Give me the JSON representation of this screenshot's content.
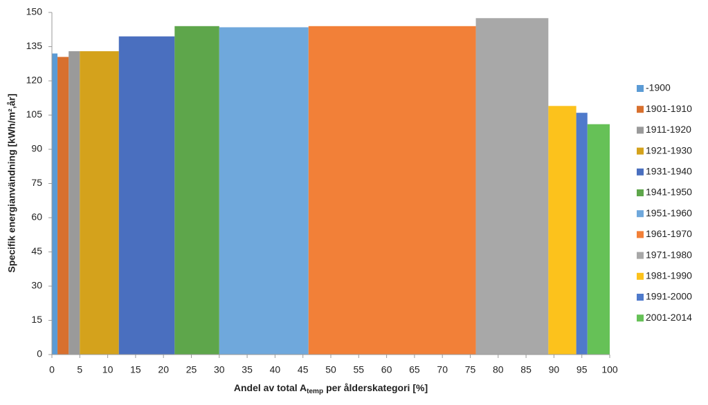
{
  "chart_data": {
    "type": "variable-width-bar",
    "x_label": [
      "Andel av total A",
      "temp",
      "per ålderskategori [%]"
    ],
    "y_label": "Specifik energianvändning [kWh/m²,år]",
    "categories": [
      "-1900",
      "1901-1910",
      "1911-1920",
      "1921-1930",
      "1931-1940",
      "1941-1950",
      "1951-1960",
      "1961-1970",
      "1971-1980",
      "1981-1990",
      "1991-2000",
      "2001-2014"
    ],
    "bins": [
      0,
      1,
      3,
      5,
      12,
      22,
      30,
      46,
      76,
      89,
      94,
      96,
      100
    ],
    "values": [
      132,
      130.5,
      133,
      133,
      139.5,
      144,
      143.5,
      144,
      147.5,
      109,
      106,
      101
    ],
    "colors": [
      "#5b9bd5",
      "#d8702e",
      "#9a9a9a",
      "#d4a21c",
      "#4a6fbf",
      "#5ea64b",
      "#6fa8dc",
      "#f28038",
      "#a8a8a8",
      "#fcc21c",
      "#4f7acb",
      "#66c157"
    ],
    "xlim": [
      0,
      100
    ],
    "xticks": [
      0,
      5,
      10,
      15,
      20,
      25,
      30,
      35,
      40,
      45,
      50,
      55,
      60,
      65,
      70,
      75,
      80,
      85,
      90,
      95,
      100
    ],
    "ylim": [
      0,
      150
    ],
    "yticks": [
      0,
      15,
      30,
      45,
      60,
      75,
      90,
      105,
      120,
      135,
      150
    ],
    "legend": "right"
  }
}
